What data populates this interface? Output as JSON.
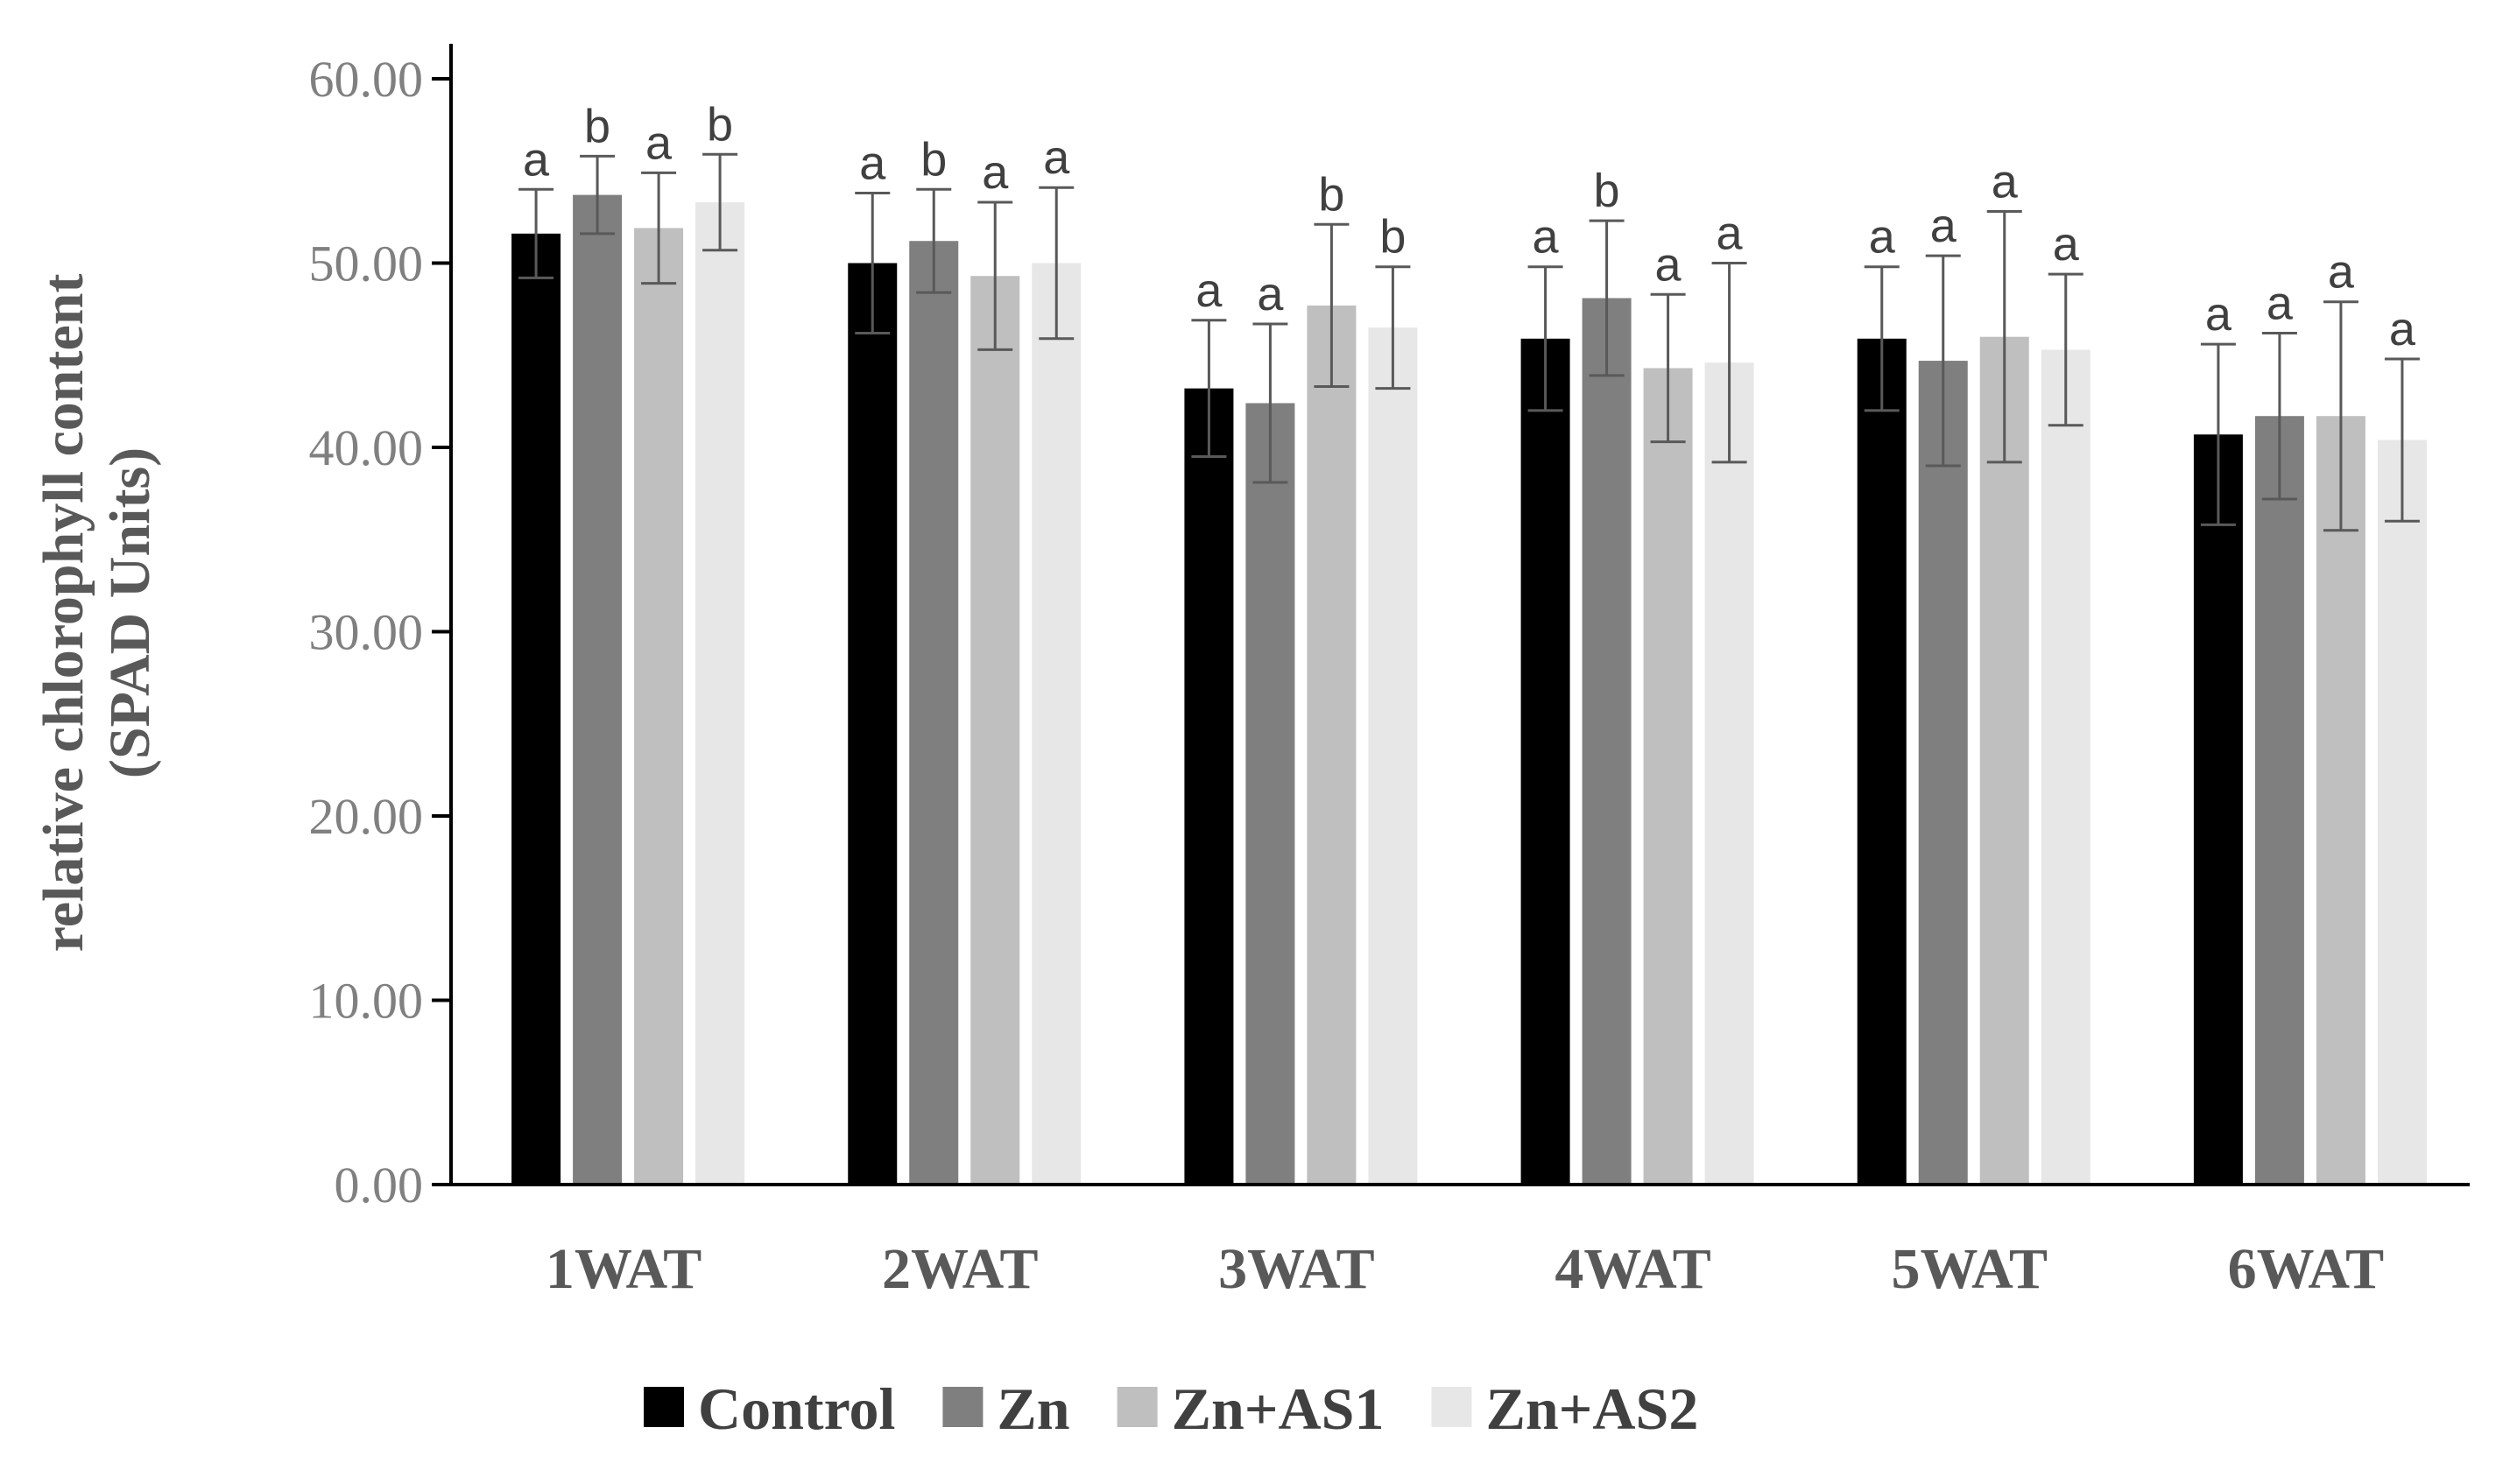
{
  "chart_data": {
    "type": "bar",
    "title": "",
    "xlabel": "",
    "ylabel": [
      "relative chlorophyll content",
      "(SPAD Units)"
    ],
    "ylim": [
      0,
      60
    ],
    "yticks": [
      "0.00",
      "10.00",
      "20.00",
      "30.00",
      "40.00",
      "50.00",
      "60.00"
    ],
    "grid": false,
    "legend_position": "bottom",
    "categories": [
      "1WAT",
      "2WAT",
      "3WAT",
      "4WAT",
      "5WAT",
      "6WAT"
    ],
    "series": [
      {
        "name": "Control",
        "color": "#000000",
        "values": [
          51.6,
          50.0,
          43.2,
          45.9,
          45.9,
          40.7
        ],
        "errors": [
          2.4,
          3.8,
          3.7,
          3.9,
          3.9,
          4.9
        ],
        "letters": [
          "a",
          "a",
          "a",
          "a",
          "a",
          "a"
        ]
      },
      {
        "name": "Zn",
        "color": "#7f7f7f",
        "values": [
          53.7,
          51.2,
          42.4,
          48.1,
          44.7,
          41.7
        ],
        "errors": [
          2.1,
          2.8,
          4.3,
          4.2,
          5.7,
          4.5
        ],
        "letters": [
          "b",
          "b",
          "a",
          "b",
          "a",
          "a"
        ]
      },
      {
        "name": "Zn+AS1",
        "color": "#bfbfbf",
        "values": [
          51.9,
          49.3,
          47.7,
          44.3,
          46.0,
          41.7
        ],
        "errors": [
          3.0,
          4.0,
          4.4,
          4.0,
          6.8,
          6.2
        ],
        "letters": [
          "a",
          "a",
          "b",
          "a",
          "a",
          "a"
        ]
      },
      {
        "name": "Zn+AS2",
        "color": "#e7e7e7",
        "values": [
          53.3,
          50.0,
          46.5,
          44.6,
          45.3,
          40.4
        ],
        "errors": [
          2.6,
          4.1,
          3.3,
          5.4,
          4.1,
          4.4
        ],
        "letters": [
          "b",
          "a",
          "b",
          "a",
          "a",
          "a"
        ]
      }
    ]
  }
}
